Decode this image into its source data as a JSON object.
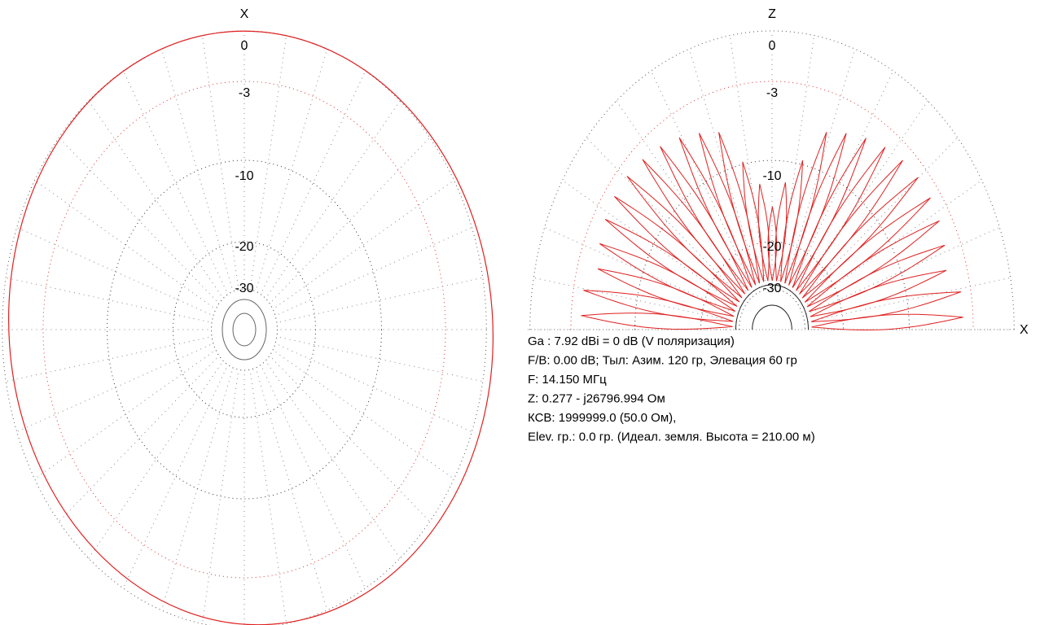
{
  "left_plot": {
    "axis_label": "X",
    "ring_labels": [
      "0",
      "-3",
      "-10",
      "-20",
      "-30"
    ]
  },
  "right_plot": {
    "top_axis_label": "Z",
    "right_axis_label": "X",
    "ring_labels": [
      "0",
      "-3",
      "-10",
      "-20",
      "-30"
    ]
  },
  "info": {
    "lines": [
      "Ga : 7.92 dBi = 0 dB  (V поляризация)",
      "F/B: 0.00 dB; Тыл: Азим. 120 гр, Элевация 60 гр",
      "F: 14.150 МГц",
      "Z: 0.277 - j26796.994 Ом",
      "КСВ: 1999999.0 (50.0 Ом),",
      "Elev. гр.: 0.0 гр. (Идеал. земля. Высота = 210.00 м)"
    ]
  }
}
